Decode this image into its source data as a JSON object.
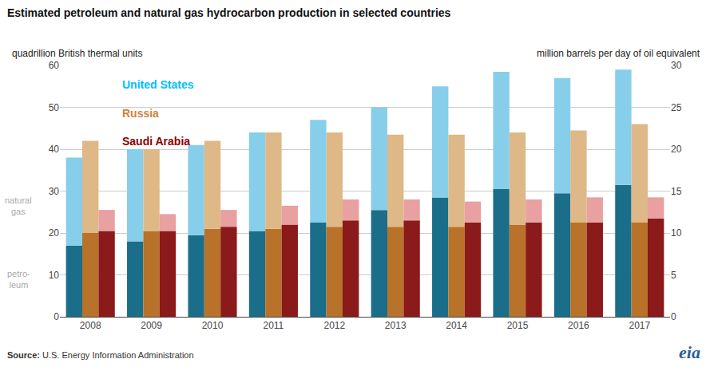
{
  "chart_data": {
    "type": "bar",
    "stacked": true,
    "title": "Estimated petroleum and natural gas hydrocarbon production in selected countries",
    "ylabel": "quadrillion British thermal units",
    "y2label": "million barrels per day of oil equivalent",
    "categories": [
      "2008",
      "2009",
      "2010",
      "2011",
      "2012",
      "2013",
      "2014",
      "2015",
      "2016",
      "2017"
    ],
    "groups": [
      {
        "name": "United States",
        "color": "#00bfff",
        "series": [
          {
            "color": "#1b6e8a",
            "values": [
              17,
              18,
              19.5,
              20.5,
              22.5,
              25.5,
              28.5,
              30.5,
              29.5,
              31.5
            ]
          },
          {
            "color": "#87ceeb",
            "values": [
              21,
              22,
              21.5,
              23.5,
              24.5,
              24.5,
              26.5,
              28,
              27.5,
              27.5
            ]
          }
        ]
      },
      {
        "name": "Russia",
        "color": "#cd853f",
        "series": [
          {
            "color": "#b8722a",
            "values": [
              20,
              20.5,
              21,
              21,
              21.5,
              21.5,
              21.5,
              22,
              22.5,
              22.5
            ]
          },
          {
            "color": "#deb887",
            "values": [
              22,
              19.5,
              21,
              23,
              22.5,
              22,
              22,
              22,
              22,
              23.5
            ]
          }
        ]
      },
      {
        "name": "Saudi Arabia",
        "color": "#8b0000",
        "series": [
          {
            "color": "#8b1a1a",
            "values": [
              20.5,
              20.5,
              21.5,
              22,
              23,
              23,
              22.5,
              22.5,
              22.5,
              23.5
            ]
          },
          {
            "color": "#e8a0a0",
            "values": [
              5,
              4,
              4,
              4.5,
              5,
              5,
              5,
              5.5,
              6,
              5
            ]
          }
        ]
      }
    ],
    "segment_labels": [
      "petro-\nleum",
      "natural\ngas"
    ],
    "ylim": [
      0,
      60
    ],
    "yticks": [
      0,
      10,
      20,
      30,
      40,
      50,
      60
    ],
    "y2lim": [
      0,
      30
    ],
    "y2ticks": [
      0,
      5,
      10,
      15,
      20,
      25,
      30
    ],
    "grid": true,
    "source": [
      "Source:",
      " U.S. Energy Information Administration"
    ],
    "logo": {
      "text": "eia",
      "color": "#2a5f8f"
    }
  }
}
